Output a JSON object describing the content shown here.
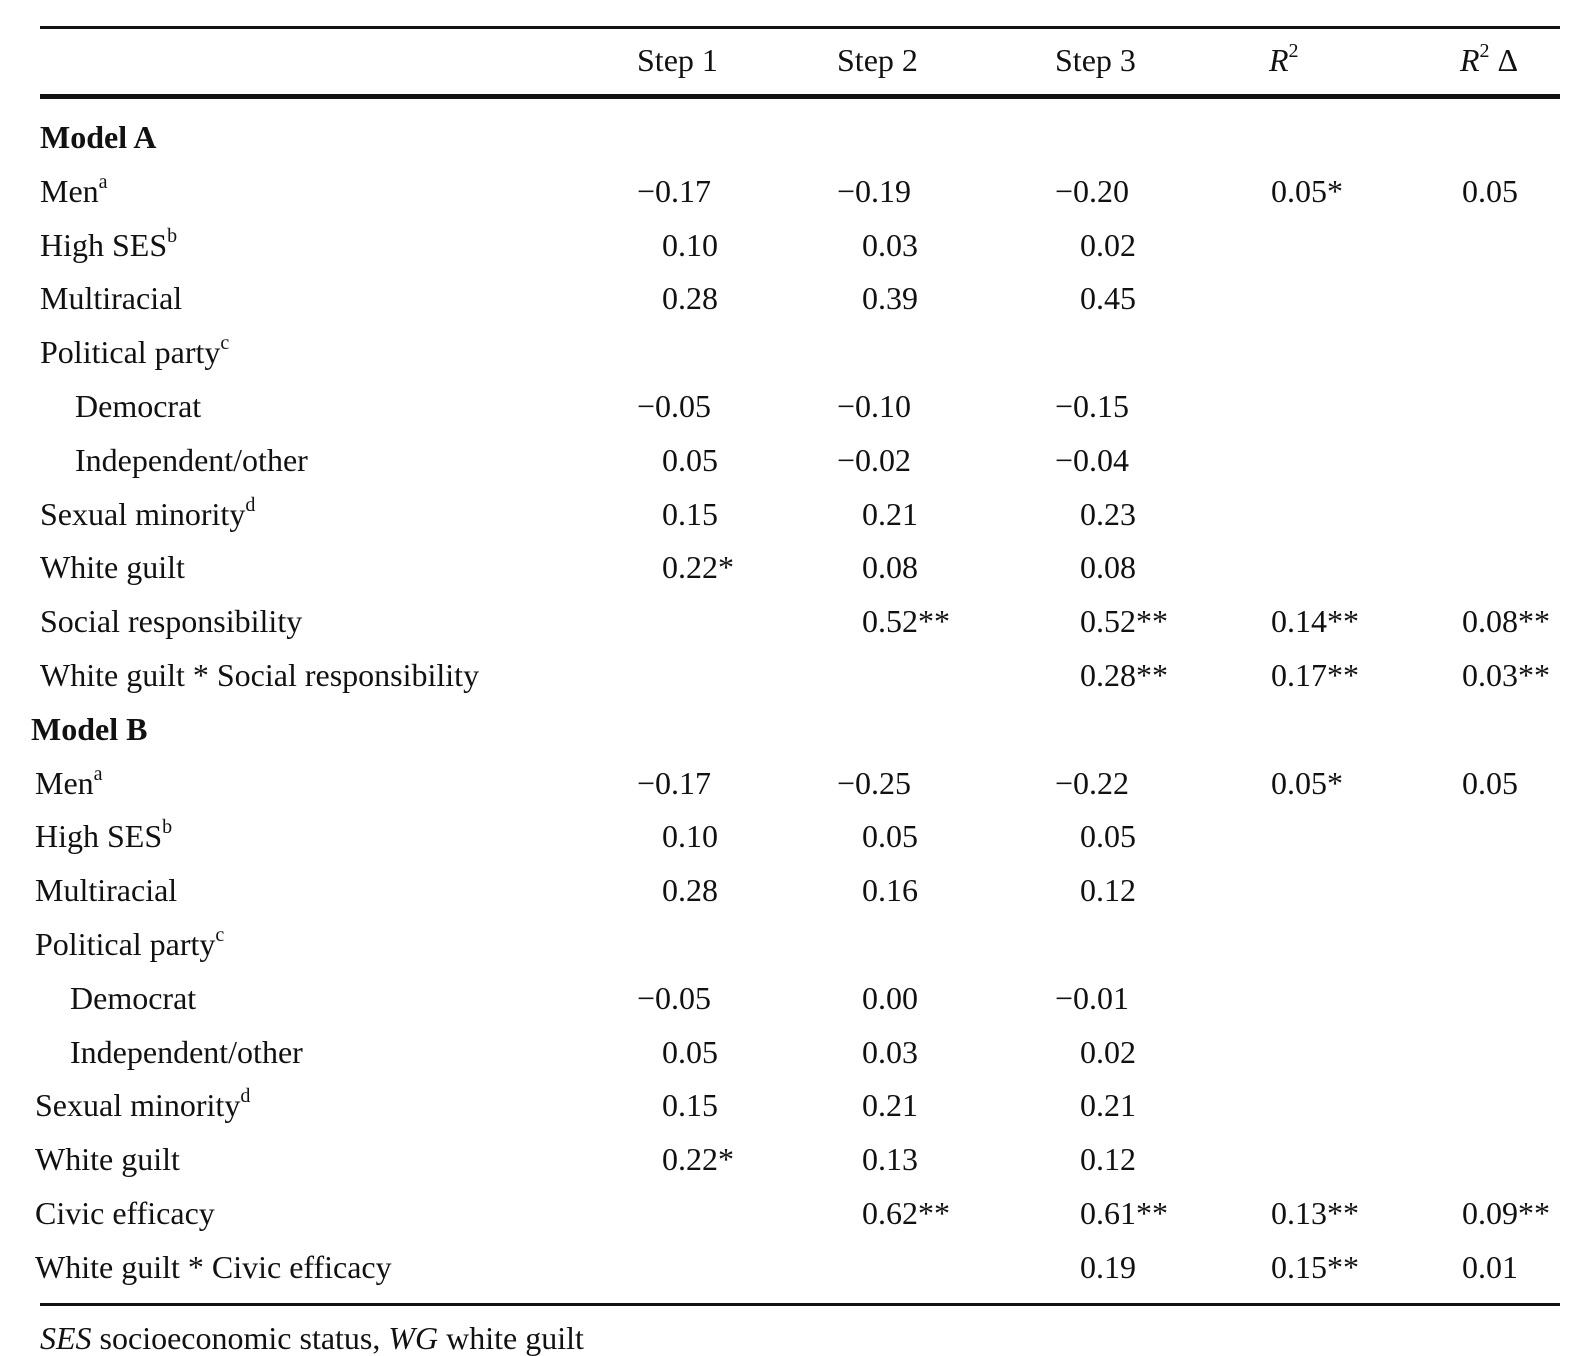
{
  "table": {
    "header": [
      "Step 1",
      "Step 2",
      "Step 3",
      {
        "text": "R",
        "sup": "2"
      },
      {
        "text": "R",
        "sup": "2",
        "after": "Δ"
      }
    ],
    "sections": [
      {
        "title": "Model A",
        "rows": [
          {
            "label": "Men",
            "sup": "a",
            "cells": [
              "−0.17",
              "−0.19",
              "−0.20",
              "0.05*",
              "0.05"
            ]
          },
          {
            "label": "High SES",
            "sup": "b",
            "cells": [
              "0.10",
              "0.03",
              "0.02",
              null,
              null
            ]
          },
          {
            "label": "Multiracial",
            "cells": [
              "0.28",
              "0.39",
              "0.45",
              null,
              null
            ]
          },
          {
            "label": "Political party",
            "sup": "c",
            "children": [
              {
                "label": "Democrat",
                "cells": [
                  "−0.05",
                  "−0.10",
                  "−0.15",
                  null,
                  null
                ]
              },
              {
                "label": "Independent/other",
                "cells": [
                  "0.05",
                  "−0.02",
                  "−0.04",
                  null,
                  null
                ]
              }
            ]
          },
          {
            "label": "Sexual minority",
            "sup": "d",
            "cells": [
              "0.15",
              "0.21",
              "0.23",
              null,
              null
            ]
          },
          {
            "label": "White guilt",
            "cells": [
              "0.22*",
              "0.08",
              "0.08",
              null,
              null
            ]
          },
          {
            "label": "Social responsibility",
            "cells": [
              null,
              "0.52**",
              "0.52**",
              "0.14**",
              "0.08**"
            ]
          },
          {
            "label": "White guilt * Social responsibility",
            "cells": [
              null,
              null,
              "0.28**",
              "0.17**",
              "0.03**"
            ]
          }
        ]
      },
      {
        "title": "Model B",
        "rows": [
          {
            "label": "Men",
            "sup": "a",
            "cells": [
              "−0.17",
              "−0.25",
              "−0.22",
              "0.05*",
              "0.05"
            ]
          },
          {
            "label": "High SES",
            "sup": "b",
            "cells": [
              "0.10",
              "0.05",
              "0.05",
              null,
              null
            ]
          },
          {
            "label": "Multiracial",
            "cells": [
              "0.28",
              "0.16",
              "0.12",
              null,
              null
            ]
          },
          {
            "label": "Political party",
            "sup": "c",
            "children": [
              {
                "label": "Democrat",
                "cells": [
                  "−0.05",
                  "0.00",
                  "−0.01",
                  null,
                  null
                ]
              },
              {
                "label": "Independent/other",
                "cells": [
                  "0.05",
                  "0.03",
                  "0.02",
                  null,
                  null
                ]
              }
            ]
          },
          {
            "label": "Sexual minority",
            "sup": "d",
            "cells": [
              "0.15",
              "0.21",
              "0.21",
              null,
              null
            ]
          },
          {
            "label": "White guilt",
            "cells": [
              "0.22*",
              "0.13",
              "0.12",
              null,
              null
            ]
          },
          {
            "label": "Civic efficacy",
            "cells": [
              null,
              "0.62**",
              "0.61**",
              "0.13**",
              "0.09**"
            ]
          },
          {
            "label": "White guilt * Civic efficacy",
            "cells": [
              null,
              null,
              "0.19",
              "0.15**",
              "0.01"
            ]
          }
        ]
      }
    ],
    "footnote": [
      {
        "text": "SES",
        "italic": true
      },
      {
        "text": " socioeconomic status, "
      },
      {
        "text": "WG",
        "italic": true
      },
      {
        "text": " white guilt"
      }
    ]
  }
}
